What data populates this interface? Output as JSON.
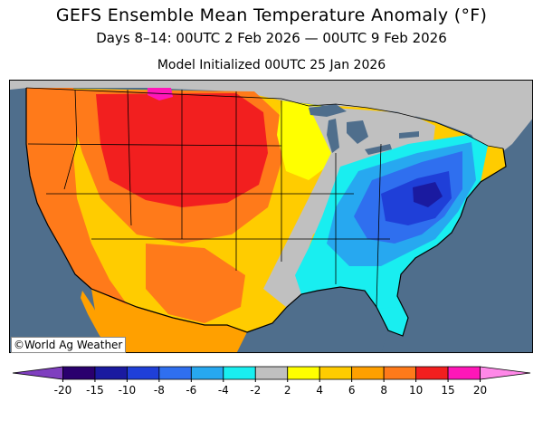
{
  "title": "GEFS Ensemble Mean Temperature Anomaly (°F)",
  "subtitle": "Days 8–14: 00UTC 2 Feb 2026 — 00UTC 9 Feb 2026",
  "init_line": "Model Initialized 00UTC 25 Jan 2026",
  "credit": "©World Ag Weather",
  "legend": {
    "labels": [
      "-20",
      "-15",
      "-10",
      "-8",
      "-6",
      "-4",
      "-2",
      "2",
      "4",
      "6",
      "8",
      "10",
      "15",
      "20"
    ],
    "colors": [
      "#7f3fbf",
      "#2a006e",
      "#1a1aa0",
      "#1f3fd8",
      "#2f6fef",
      "#27a8f0",
      "#19eef0",
      "#c0c0c0",
      "#ffff00",
      "#ffcc00",
      "#ffa000",
      "#ff7a1a",
      "#f21f1f",
      "#ff16b8",
      "#ff88e8"
    ]
  },
  "colors": {
    "ocean": "#4f6e8c",
    "neutral": "#c0c0c0"
  }
}
